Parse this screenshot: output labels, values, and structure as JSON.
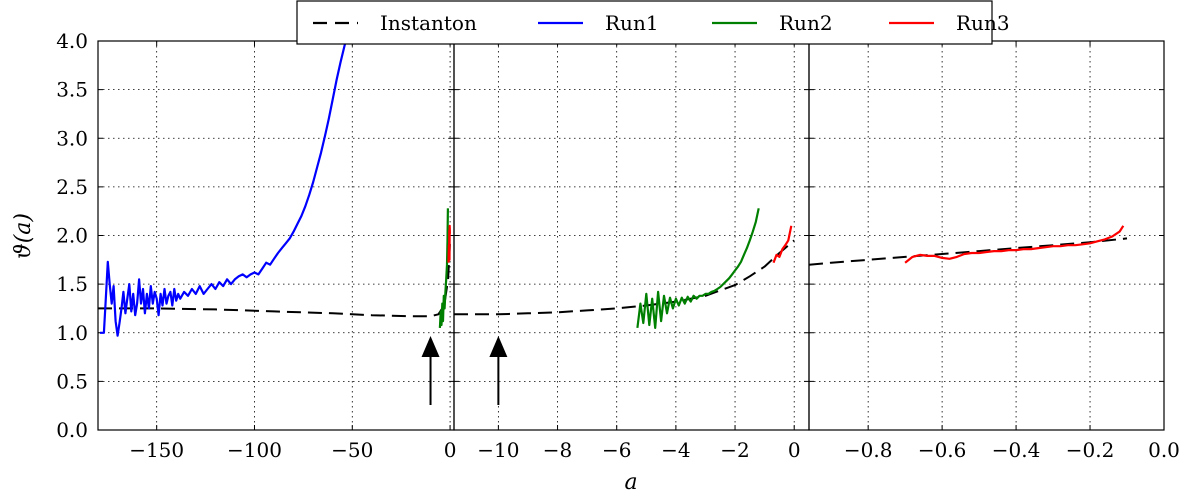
{
  "chart_data": {
    "type": "line",
    "xlabel": "a",
    "ylabel": "ϑ(a)",
    "ylim": [
      0.0,
      4.0
    ],
    "yticks": [
      "0.0",
      "0.5",
      "1.0",
      "1.5",
      "2.0",
      "2.5",
      "3.0",
      "3.5",
      "4.0"
    ],
    "legend": {
      "position": "top-center",
      "entries": [
        {
          "label": "Instanton",
          "color": "#000000",
          "style": "dashed"
        },
        {
          "label": "Run1",
          "color": "#0000ff",
          "style": "solid"
        },
        {
          "label": "Run2",
          "color": "#008000",
          "style": "solid"
        },
        {
          "label": "Run3",
          "color": "#ff0000",
          "style": "solid"
        }
      ]
    },
    "panels": [
      {
        "xlim": [
          -180,
          2
        ],
        "xticks": [
          -150,
          -100,
          -50,
          0
        ],
        "xtick_labels": [
          "−150",
          "−100",
          "−50",
          "0"
        ],
        "arrow_x": -10,
        "series": [
          {
            "name": "Instanton",
            "color": "#000000",
            "style": "dashed",
            "x": [
              -180,
              -150,
              -120,
              -90,
              -60,
              -40,
              -20,
              -10,
              -6,
              -3,
              -1,
              0
            ],
            "y": [
              1.25,
              1.25,
              1.24,
              1.22,
              1.2,
              1.18,
              1.17,
              1.17,
              1.19,
              1.28,
              1.55,
              1.95
            ]
          },
          {
            "name": "Run1",
            "color": "#0000ff",
            "style": "solid",
            "x": [
              -179,
              -177,
              -176,
              -175,
              -174,
              -173,
              -172,
              -171,
              -170,
              -169,
              -168,
              -167,
              -166,
              -165,
              -164,
              -163,
              -162,
              -161,
              -160,
              -159,
              -158,
              -157,
              -156,
              -155,
              -154,
              -153,
              -152,
              -151,
              -150,
              -149,
              -148,
              -147,
              -146,
              -145,
              -144,
              -143,
              -142,
              -141,
              -140,
              -139,
              -138,
              -136,
              -134,
              -132,
              -130,
              -128,
              -126,
              -124,
              -122,
              -120,
              -118,
              -116,
              -114,
              -112,
              -110,
              -108,
              -106,
              -104,
              -102,
              -100,
              -98,
              -96,
              -94,
              -92,
              -90,
              -88,
              -86,
              -84,
              -82,
              -80,
              -78,
              -76,
              -74,
              -72,
              -70,
              -68,
              -66,
              -64,
              -62,
              -60,
              -58,
              -56,
              -54,
              -52,
              -51
            ],
            "y": [
              1.0,
              1.0,
              1.35,
              1.73,
              1.5,
              1.3,
              1.48,
              1.12,
              0.97,
              1.1,
              1.25,
              1.42,
              1.2,
              1.35,
              1.5,
              1.22,
              1.4,
              1.18,
              1.3,
              1.55,
              1.3,
              1.45,
              1.2,
              1.4,
              1.25,
              1.48,
              1.3,
              1.42,
              1.35,
              1.18,
              1.4,
              1.28,
              1.45,
              1.3,
              1.38,
              1.42,
              1.28,
              1.45,
              1.33,
              1.4,
              1.35,
              1.42,
              1.38,
              1.45,
              1.4,
              1.48,
              1.4,
              1.45,
              1.5,
              1.45,
              1.52,
              1.48,
              1.55,
              1.5,
              1.55,
              1.58,
              1.6,
              1.57,
              1.6,
              1.62,
              1.6,
              1.66,
              1.72,
              1.7,
              1.76,
              1.82,
              1.87,
              1.92,
              1.97,
              2.04,
              2.12,
              2.2,
              2.3,
              2.42,
              2.55,
              2.7,
              2.85,
              3.02,
              3.2,
              3.4,
              3.6,
              3.78,
              3.95,
              4.1,
              4.2
            ]
          },
          {
            "name": "Run2",
            "color": "#008000",
            "style": "solid",
            "x": [
              -5.2,
              -4.8,
              -4.4,
              -4.0,
              -3.6,
              -3.2,
              -2.8,
              -2.4,
              -2.0,
              -1.6,
              -1.3,
              -1.1
            ],
            "y": [
              1.05,
              1.22,
              1.08,
              1.3,
              1.12,
              1.38,
              1.25,
              1.42,
              1.55,
              1.7,
              1.95,
              2.28
            ]
          },
          {
            "name": "Run3",
            "color": "#ff0000",
            "style": "solid",
            "x": [
              -0.8,
              -0.7,
              -0.6,
              -0.5,
              -0.4,
              -0.3,
              -0.2,
              -0.1
            ],
            "y": [
              1.72,
              1.8,
              1.9,
              1.78,
              2.05,
              1.75,
              2.1,
              2.02
            ]
          }
        ]
      },
      {
        "xlim": [
          -11.5,
          0.5
        ],
        "xticks": [
          -10,
          -8,
          -6,
          -4,
          -2,
          0
        ],
        "xtick_labels": [
          "−10",
          "−8",
          "−6",
          "−4",
          "−2",
          "0"
        ],
        "arrow_x": -10,
        "series": [
          {
            "name": "Instanton",
            "color": "#000000",
            "style": "dashed",
            "x": [
              -11.5,
              -10,
              -9,
              -8,
              -7,
              -6,
              -5,
              -4,
              -3,
              -2,
              -1.5,
              -1,
              -0.5,
              0
            ],
            "y": [
              1.19,
              1.19,
              1.2,
              1.21,
              1.23,
              1.25,
              1.28,
              1.32,
              1.38,
              1.49,
              1.58,
              1.68,
              1.82,
              1.95
            ]
          },
          {
            "name": "Run2",
            "color": "#008000",
            "style": "solid",
            "x": [
              -5.3,
              -5.2,
              -5.1,
              -5.0,
              -4.9,
              -4.8,
              -4.7,
              -4.6,
              -4.5,
              -4.4,
              -4.3,
              -4.2,
              -4.1,
              -4.0,
              -3.9,
              -3.8,
              -3.7,
              -3.6,
              -3.5,
              -3.4,
              -3.3,
              -3.2,
              -3.1,
              -3.0,
              -2.9,
              -2.8,
              -2.7,
              -2.6,
              -2.5,
              -2.4,
              -2.3,
              -2.2,
              -2.1,
              -2.0,
              -1.9,
              -1.8,
              -1.7,
              -1.6,
              -1.5,
              -1.4,
              -1.3,
              -1.2
            ],
            "y": [
              1.05,
              1.3,
              1.1,
              1.4,
              1.08,
              1.35,
              1.05,
              1.42,
              1.12,
              1.38,
              1.2,
              1.36,
              1.25,
              1.35,
              1.28,
              1.36,
              1.3,
              1.37,
              1.32,
              1.38,
              1.35,
              1.38,
              1.38,
              1.4,
              1.4,
              1.42,
              1.43,
              1.45,
              1.47,
              1.5,
              1.53,
              1.56,
              1.6,
              1.64,
              1.68,
              1.73,
              1.8,
              1.87,
              1.95,
              2.04,
              2.14,
              2.28
            ]
          },
          {
            "name": "Run3",
            "color": "#ff0000",
            "style": "solid",
            "x": [
              -0.7,
              -0.6,
              -0.5,
              -0.4,
              -0.3,
              -0.2,
              -0.1
            ],
            "y": [
              1.72,
              1.8,
              1.78,
              1.86,
              1.9,
              1.95,
              2.1
            ]
          }
        ]
      },
      {
        "xlim": [
          -0.96,
          0.0
        ],
        "xticks": [
          -0.8,
          -0.6,
          -0.4,
          -0.2,
          0.0
        ],
        "xtick_labels": [
          "−0.8",
          "−0.6",
          "−0.4",
          "−0.2",
          "0.0"
        ],
        "series": [
          {
            "name": "Instanton",
            "color": "#000000",
            "style": "dashed",
            "x": [
              -0.96,
              -0.9,
              -0.8,
              -0.7,
              -0.6,
              -0.5,
              -0.4,
              -0.3,
              -0.2,
              -0.1
            ],
            "y": [
              1.7,
              1.72,
              1.75,
              1.78,
              1.81,
              1.84,
              1.87,
              1.9,
              1.93,
              1.97
            ]
          },
          {
            "name": "Run3",
            "color": "#ff0000",
            "style": "solid",
            "x": [
              -0.7,
              -0.68,
              -0.66,
              -0.64,
              -0.62,
              -0.6,
              -0.58,
              -0.56,
              -0.54,
              -0.52,
              -0.5,
              -0.48,
              -0.46,
              -0.44,
              -0.42,
              -0.4,
              -0.38,
              -0.36,
              -0.34,
              -0.32,
              -0.3,
              -0.28,
              -0.26,
              -0.24,
              -0.22,
              -0.2,
              -0.18,
              -0.16,
              -0.14,
              -0.12,
              -0.11
            ],
            "y": [
              1.72,
              1.78,
              1.8,
              1.79,
              1.79,
              1.77,
              1.76,
              1.78,
              1.81,
              1.82,
              1.82,
              1.83,
              1.84,
              1.84,
              1.85,
              1.85,
              1.86,
              1.86,
              1.87,
              1.88,
              1.89,
              1.89,
              1.9,
              1.9,
              1.91,
              1.92,
              1.94,
              1.96,
              1.99,
              2.04,
              2.1
            ]
          }
        ]
      }
    ]
  }
}
